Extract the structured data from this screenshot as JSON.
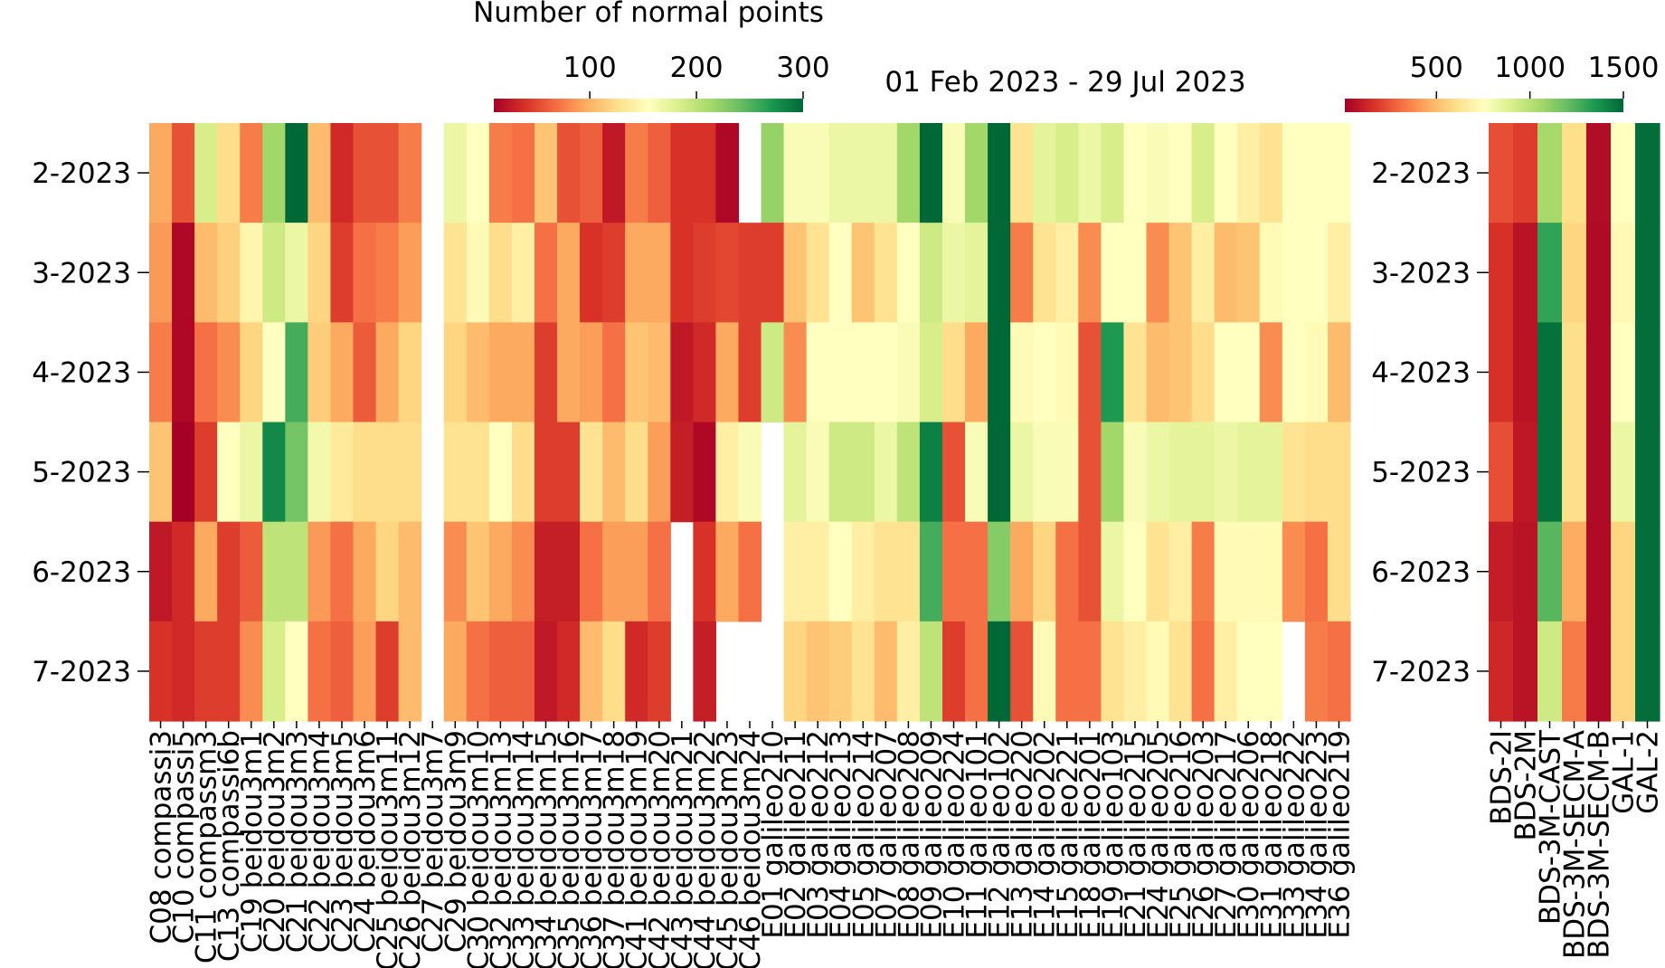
{
  "chart_data": [
    {
      "type": "heatmap",
      "title": "Number of normal points",
      "colormap": "RdYlGn",
      "clim": [
        10,
        300
      ],
      "cticks": [
        100,
        200,
        300
      ],
      "rows": [
        "2-2023",
        "3-2023",
        "4-2023",
        "5-2023",
        "6-2023",
        "7-2023"
      ],
      "columns": [
        "C08 compassi3",
        "C10 compassi5",
        "C11 compassm3",
        "C13 compassi6b",
        "C19 beidou3m1",
        "C20 beidou3m2",
        "C21 beidou3m3",
        "C22 beidou3m4",
        "C23 beidou3m5",
        "C24 beidou3m6",
        "C25 beidou3m11",
        "C26 beidou3m12",
        "C27 beidou3m7",
        "C29 beidou3m9",
        "C30 beidou3m10",
        "C32 beidou3m13",
        "C33 beidou3m14",
        "C34 beidou3m15",
        "C35 beidou3m16",
        "C36 beidou3m17",
        "C37 beidou3m18",
        "C41 beidou3m19",
        "C42 beidou3m20",
        "C43 beidou3m21",
        "C44 beidou3m22",
        "C45 beidou3m23",
        "C46 beidou3m24",
        "E01 galileo210",
        "E02 galileo211",
        "E03 galileo212",
        "E04 galileo213",
        "E05 galileo214",
        "E07 galileo207",
        "E08 galileo208",
        "E09 galileo209",
        "E10 galileo224",
        "E11 galileo101",
        "E12 galileo102",
        "E13 galileo220",
        "E14 galileo202",
        "E15 galileo221",
        "E18 galileo201",
        "E19 galileo103",
        "E21 galileo215",
        "E24 galileo205",
        "E25 galileo216",
        "E26 galileo203",
        "E27 galileo217",
        "E30 galileo206",
        "E31 galileo218",
        "E33 galileo222",
        "E34 galileo223",
        "E36 galileo219"
      ],
      "values": [
        [
          95,
          55,
          185,
          125,
          75,
          215,
          300,
          105,
          35,
          55,
          55,
          75,
          null,
          170,
          155,
          75,
          70,
          110,
          55,
          62,
          25,
          75,
          62,
          40,
          40,
          15,
          null,
          220,
          160,
          160,
          170,
          170,
          170,
          215,
          300,
          160,
          215,
          300,
          130,
          175,
          185,
          170,
          185,
          155,
          160,
          155,
          185,
          155,
          140,
          130,
          155,
          155,
          155
        ],
        [
          88,
          15,
          105,
          117,
          146,
          190,
          170,
          120,
          45,
          70,
          75,
          90,
          null,
          130,
          150,
          125,
          140,
          70,
          95,
          40,
          45,
          95,
          95,
          40,
          45,
          50,
          45,
          45,
          110,
          130,
          155,
          110,
          130,
          155,
          190,
          170,
          175,
          300,
          75,
          130,
          140,
          82,
          155,
          155,
          82,
          110,
          140,
          105,
          110,
          150,
          155,
          155,
          140
        ],
        [
          75,
          15,
          70,
          82,
          120,
          155,
          255,
          115,
          95,
          60,
          95,
          120,
          null,
          120,
          105,
          95,
          95,
          45,
          95,
          90,
          70,
          110,
          105,
          25,
          35,
          95,
          45,
          190,
          82,
          155,
          155,
          155,
          155,
          160,
          185,
          125,
          95,
          300,
          150,
          155,
          150,
          55,
          270,
          130,
          105,
          110,
          125,
          155,
          155,
          82,
          155,
          150,
          105
        ],
        [
          110,
          10,
          45,
          155,
          170,
          280,
          235,
          165,
          135,
          125,
          125,
          125,
          null,
          130,
          130,
          155,
          125,
          45,
          45,
          130,
          105,
          125,
          90,
          28,
          15,
          140,
          160,
          null,
          175,
          160,
          190,
          190,
          170,
          200,
          285,
          55,
          160,
          300,
          170,
          160,
          160,
          55,
          215,
          160,
          170,
          175,
          175,
          170,
          175,
          175,
          130,
          125,
          125
        ],
        [
          25,
          35,
          95,
          45,
          60,
          200,
          200,
          88,
          70,
          95,
          120,
          105,
          null,
          82,
          110,
          95,
          82,
          28,
          28,
          70,
          90,
          90,
          70,
          null,
          40,
          95,
          70,
          null,
          140,
          140,
          155,
          140,
          130,
          130,
          255,
          70,
          70,
          228,
          95,
          120,
          70,
          55,
          170,
          155,
          130,
          140,
          75,
          150,
          150,
          150,
          82,
          70,
          125
        ],
        [
          40,
          35,
          45,
          45,
          82,
          185,
          155,
          70,
          62,
          90,
          45,
          105,
          null,
          95,
          70,
          62,
          62,
          25,
          35,
          105,
          125,
          35,
          45,
          null,
          28,
          null,
          null,
          null,
          120,
          110,
          115,
          130,
          105,
          140,
          200,
          45,
          70,
          300,
          55,
          150,
          70,
          70,
          130,
          140,
          150,
          130,
          70,
          140,
          155,
          155,
          null,
          75,
          70
        ]
      ]
    },
    {
      "type": "heatmap",
      "title": "01 Feb 2023 - 29 Jul 2023",
      "colormap": "RdYlGn",
      "clim": [
        10,
        1500
      ],
      "cticks": [
        500,
        1000,
        1500
      ],
      "rows": [
        "2-2023",
        "3-2023",
        "4-2023",
        "5-2023",
        "6-2023",
        "7-2023"
      ],
      "columns": [
        "BDS-2I",
        "BDS-2M",
        "BDS-3M-CAST",
        "BDS-3M-SECM-A",
        "BDS-3M-SECM-B",
        "GAL-1",
        "GAL-2"
      ],
      "values": [
        [
          235,
          190,
          1050,
          605,
          50,
          755,
          1480
        ],
        [
          160,
          70,
          1305,
          575,
          40,
          725,
          1480
        ],
        [
          160,
          70,
          1470,
          605,
          40,
          755,
          1480
        ],
        [
          235,
          85,
          1470,
          605,
          40,
          830,
          1480
        ],
        [
          100,
          70,
          1230,
          455,
          40,
          575,
          1480
        ],
        [
          130,
          70,
          935,
          340,
          40,
          575,
          1480
        ]
      ]
    }
  ]
}
